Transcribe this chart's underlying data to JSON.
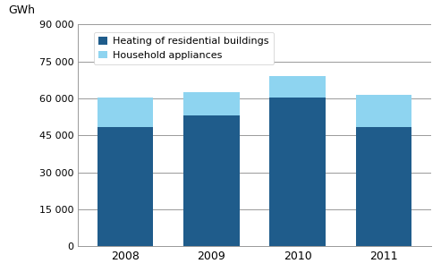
{
  "years": [
    "2008",
    "2009",
    "2010",
    "2011"
  ],
  "heating": [
    48500,
    53000,
    60500,
    48500
  ],
  "appliances": [
    12000,
    9500,
    8500,
    13000
  ],
  "heating_color": "#1F5C8B",
  "appliances_color": "#8ED4F0",
  "ylabel": "GWh",
  "ylim": [
    0,
    90000
  ],
  "yticks": [
    0,
    15000,
    30000,
    45000,
    60000,
    75000,
    90000
  ],
  "legend_labels": [
    "Heating of residential buildings",
    "Household appliances"
  ],
  "bar_width": 0.65,
  "background_color": "#FFFFFF",
  "grid_color": "#999999"
}
